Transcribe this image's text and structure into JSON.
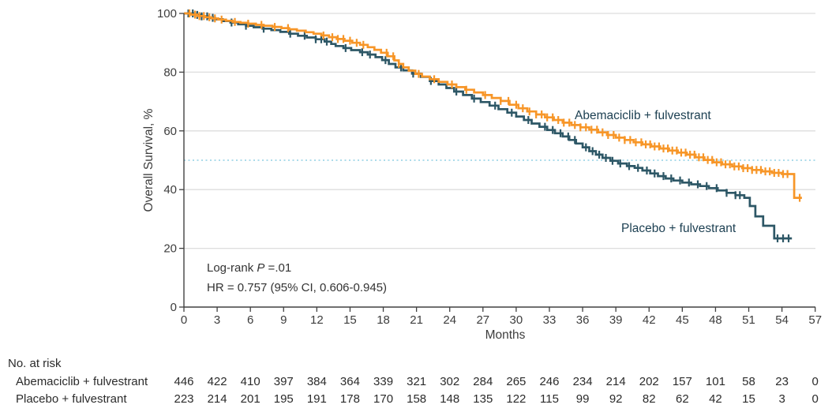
{
  "chart_data": {
    "type": "line",
    "variant": "kaplan-meier-survival",
    "title": "",
    "xlabel": "Months",
    "ylabel": "Overall Survival, %",
    "xlim": [
      0,
      57
    ],
    "ylim": [
      0,
      100
    ],
    "x_ticks": [
      0,
      3,
      6,
      9,
      12,
      15,
      18,
      21,
      24,
      27,
      30,
      33,
      36,
      39,
      42,
      45,
      48,
      51,
      54,
      57
    ],
    "y_ticks": [
      0,
      20,
      40,
      60,
      80,
      100
    ],
    "grid": "horizontal",
    "gridline_color": "#DDDDDD",
    "reference_line": {
      "y": 50,
      "style": "dotted",
      "color": "#A0D6E8"
    },
    "annotations": {
      "logrank_prefix": "Log-rank ",
      "logrank_stat": "P",
      "logrank_value": " =.01",
      "hr_text": "HR = 0.757 (95% CI, 0.606-0.945)"
    },
    "series": [
      {
        "name": "Abemaciclib + fulvestrant",
        "color": "#F79628",
        "label_color": "#1E4153",
        "end_time": 55.8,
        "points": [
          [
            0,
            100
          ],
          [
            0.6,
            99.6
          ],
          [
            1.2,
            99.1
          ],
          [
            1.9,
            98.7
          ],
          [
            2.5,
            98.3
          ],
          [
            3.1,
            97.9
          ],
          [
            3.8,
            97.5
          ],
          [
            4.4,
            97.1
          ],
          [
            5.1,
            96.8
          ],
          [
            5.8,
            96.5
          ],
          [
            6.5,
            96.1
          ],
          [
            7.2,
            95.8
          ],
          [
            8.0,
            95.4
          ],
          [
            8.8,
            95.0
          ],
          [
            9.5,
            94.6
          ],
          [
            10.2,
            94.1
          ],
          [
            11.0,
            93.6
          ],
          [
            11.7,
            93.1
          ],
          [
            12.4,
            92.5
          ],
          [
            13.1,
            91.9
          ],
          [
            13.8,
            91.3
          ],
          [
            14.5,
            90.7
          ],
          [
            15.2,
            90.0
          ],
          [
            15.9,
            89.3
          ],
          [
            16.6,
            88.5
          ],
          [
            17.2,
            87.6
          ],
          [
            17.8,
            86.6
          ],
          [
            18.4,
            85.4
          ],
          [
            19.0,
            84.0
          ],
          [
            19.4,
            82.8
          ],
          [
            19.8,
            81.6
          ],
          [
            20.3,
            80.5
          ],
          [
            20.9,
            79.4
          ],
          [
            21.5,
            78.5
          ],
          [
            22.2,
            77.6
          ],
          [
            23.0,
            76.7
          ],
          [
            23.8,
            75.8
          ],
          [
            24.6,
            74.9
          ],
          [
            25.4,
            74.0
          ],
          [
            26.2,
            73.1
          ],
          [
            27.0,
            72.2
          ],
          [
            27.8,
            71.2
          ],
          [
            28.6,
            70.2
          ],
          [
            29.4,
            68.9
          ],
          [
            30.2,
            67.7
          ],
          [
            31.0,
            66.6
          ],
          [
            31.8,
            65.6
          ],
          [
            32.6,
            64.6
          ],
          [
            33.4,
            63.7
          ],
          [
            34.2,
            62.8
          ],
          [
            35.0,
            62.0
          ],
          [
            35.8,
            61.2
          ],
          [
            36.6,
            60.4
          ],
          [
            37.4,
            59.5
          ],
          [
            38.2,
            58.6
          ],
          [
            39.0,
            57.7
          ],
          [
            39.8,
            56.9
          ],
          [
            40.6,
            56.1
          ],
          [
            41.4,
            55.4
          ],
          [
            42.2,
            54.7
          ],
          [
            43.0,
            54.0
          ],
          [
            43.8,
            53.3
          ],
          [
            44.6,
            52.6
          ],
          [
            45.4,
            51.9
          ],
          [
            46.2,
            51.0
          ],
          [
            47.0,
            50.1
          ],
          [
            47.8,
            49.3
          ],
          [
            48.6,
            48.6
          ],
          [
            49.5,
            47.9
          ],
          [
            50.4,
            47.3
          ],
          [
            51.3,
            46.7
          ],
          [
            52.2,
            46.2
          ],
          [
            53.1,
            45.7
          ],
          [
            54.0,
            45.3
          ],
          [
            55.1,
            37.2
          ]
        ],
        "censor_times": [
          0.5,
          1.0,
          1.4,
          1.8,
          2.3,
          2.8,
          3.4,
          4.6,
          5.8,
          7.0,
          8.2,
          9.4,
          12.6,
          13.4,
          13.9,
          14.4,
          15.0,
          15.6,
          16.2,
          18.3,
          18.9,
          19.4,
          21.2,
          22.6,
          24.2,
          25.5,
          27.2,
          28.6,
          29.3,
          30.0,
          30.6,
          31.2,
          31.8,
          32.3,
          32.8,
          33.3,
          33.8,
          34.3,
          34.8,
          35.3,
          35.8,
          36.3,
          36.8,
          37.3,
          37.8,
          38.3,
          38.8,
          39.3,
          39.8,
          40.3,
          40.8,
          41.3,
          41.7,
          42.1,
          42.5,
          42.9,
          43.3,
          43.7,
          44.1,
          44.5,
          44.9,
          45.3,
          45.7,
          46.1,
          46.5,
          46.9,
          47.3,
          47.7,
          48.1,
          48.5,
          48.9,
          49.3,
          49.7,
          50.1,
          50.5,
          50.9,
          51.3,
          51.7,
          52.1,
          52.5,
          52.9,
          53.3,
          53.7,
          54.1,
          54.5,
          55.6
        ]
      },
      {
        "name": "Placebo + fulvestrant",
        "color": "#2D5766",
        "label_color": "#1E4153",
        "end_time": 54.9,
        "points": [
          [
            0,
            100
          ],
          [
            1.0,
            99.5
          ],
          [
            1.6,
            99.0
          ],
          [
            2.2,
            98.5
          ],
          [
            2.8,
            98.0
          ],
          [
            3.5,
            97.4
          ],
          [
            4.2,
            96.9
          ],
          [
            4.9,
            96.3
          ],
          [
            5.6,
            95.8
          ],
          [
            6.3,
            95.3
          ],
          [
            7.1,
            94.8
          ],
          [
            7.9,
            94.3
          ],
          [
            8.7,
            93.7
          ],
          [
            9.5,
            93.1
          ],
          [
            10.3,
            92.4
          ],
          [
            11.1,
            91.8
          ],
          [
            11.9,
            91.2
          ],
          [
            12.7,
            90.4
          ],
          [
            13.3,
            89.6
          ],
          [
            13.7,
            88.9
          ],
          [
            14.4,
            88.2
          ],
          [
            15.1,
            87.5
          ],
          [
            15.9,
            86.8
          ],
          [
            16.6,
            86.0
          ],
          [
            17.3,
            85.1
          ],
          [
            17.9,
            84.1
          ],
          [
            18.5,
            82.8
          ],
          [
            19.1,
            81.6
          ],
          [
            19.8,
            80.6
          ],
          [
            20.6,
            79.5
          ],
          [
            21.4,
            78.4
          ],
          [
            22.2,
            77.0
          ],
          [
            23.0,
            75.8
          ],
          [
            23.7,
            74.6
          ],
          [
            24.4,
            73.4
          ],
          [
            25.2,
            72.2
          ],
          [
            26.0,
            71.0
          ],
          [
            26.8,
            69.8
          ],
          [
            27.6,
            68.6
          ],
          [
            28.4,
            67.4
          ],
          [
            29.2,
            66.2
          ],
          [
            30.0,
            64.9
          ],
          [
            30.7,
            63.7
          ],
          [
            31.4,
            62.5
          ],
          [
            32.1,
            61.4
          ],
          [
            32.8,
            60.3
          ],
          [
            33.5,
            59.2
          ],
          [
            34.2,
            58.1
          ],
          [
            34.8,
            56.9
          ],
          [
            35.4,
            55.7
          ],
          [
            36.0,
            54.4
          ],
          [
            36.6,
            53.1
          ],
          [
            37.2,
            51.9
          ],
          [
            37.8,
            50.8
          ],
          [
            38.5,
            49.8
          ],
          [
            39.2,
            48.9
          ],
          [
            40.0,
            48.0
          ],
          [
            40.7,
            47.4
          ],
          [
            41.4,
            46.5
          ],
          [
            42.1,
            45.5
          ],
          [
            42.8,
            44.6
          ],
          [
            43.5,
            43.8
          ],
          [
            44.2,
            43.1
          ],
          [
            45.0,
            42.4
          ],
          [
            45.8,
            41.8
          ],
          [
            46.6,
            41.2
          ],
          [
            47.4,
            40.5
          ],
          [
            48.2,
            39.7
          ],
          [
            49.0,
            38.9
          ],
          [
            49.8,
            38.1
          ],
          [
            50.6,
            37.2
          ],
          [
            51.1,
            34.4
          ],
          [
            51.6,
            30.9
          ],
          [
            52.3,
            27.7
          ],
          [
            53.3,
            23.4
          ]
        ],
        "censor_times": [
          0.4,
          0.8,
          1.2,
          1.6,
          2.1,
          2.6,
          4.3,
          5.6,
          7.2,
          9.6,
          10.9,
          11.9,
          12.4,
          12.9,
          14.6,
          16.1,
          16.8,
          18.2,
          19.6,
          20.7,
          22.3,
          24.6,
          26.2,
          28.1,
          29.6,
          31.1,
          32.6,
          33.3,
          34.0,
          34.7,
          35.3,
          36.3,
          36.9,
          37.5,
          38.1,
          38.7,
          39.4,
          40.2,
          41.0,
          41.8,
          42.5,
          43.3,
          44.0,
          44.8,
          45.6,
          46.4,
          47.2,
          48.1,
          49.0,
          49.8,
          50.2,
          53.6,
          54.1,
          54.6
        ]
      }
    ]
  },
  "risk_table": {
    "header": "No. at risk",
    "time_points": [
      0,
      3,
      6,
      9,
      12,
      15,
      18,
      21,
      24,
      27,
      30,
      33,
      36,
      39,
      42,
      45,
      48,
      51,
      54,
      57
    ],
    "rows": [
      {
        "label": "Abemaciclib + fulvestrant",
        "values": [
          446,
          422,
          410,
          397,
          384,
          364,
          339,
          321,
          302,
          284,
          265,
          246,
          234,
          214,
          202,
          157,
          101,
          58,
          23,
          0
        ]
      },
      {
        "label": "Placebo + fulvestrant",
        "values": [
          223,
          214,
          201,
          195,
          191,
          178,
          170,
          158,
          148,
          135,
          122,
          115,
          99,
          92,
          82,
          62,
          42,
          15,
          3,
          0
        ]
      }
    ]
  }
}
